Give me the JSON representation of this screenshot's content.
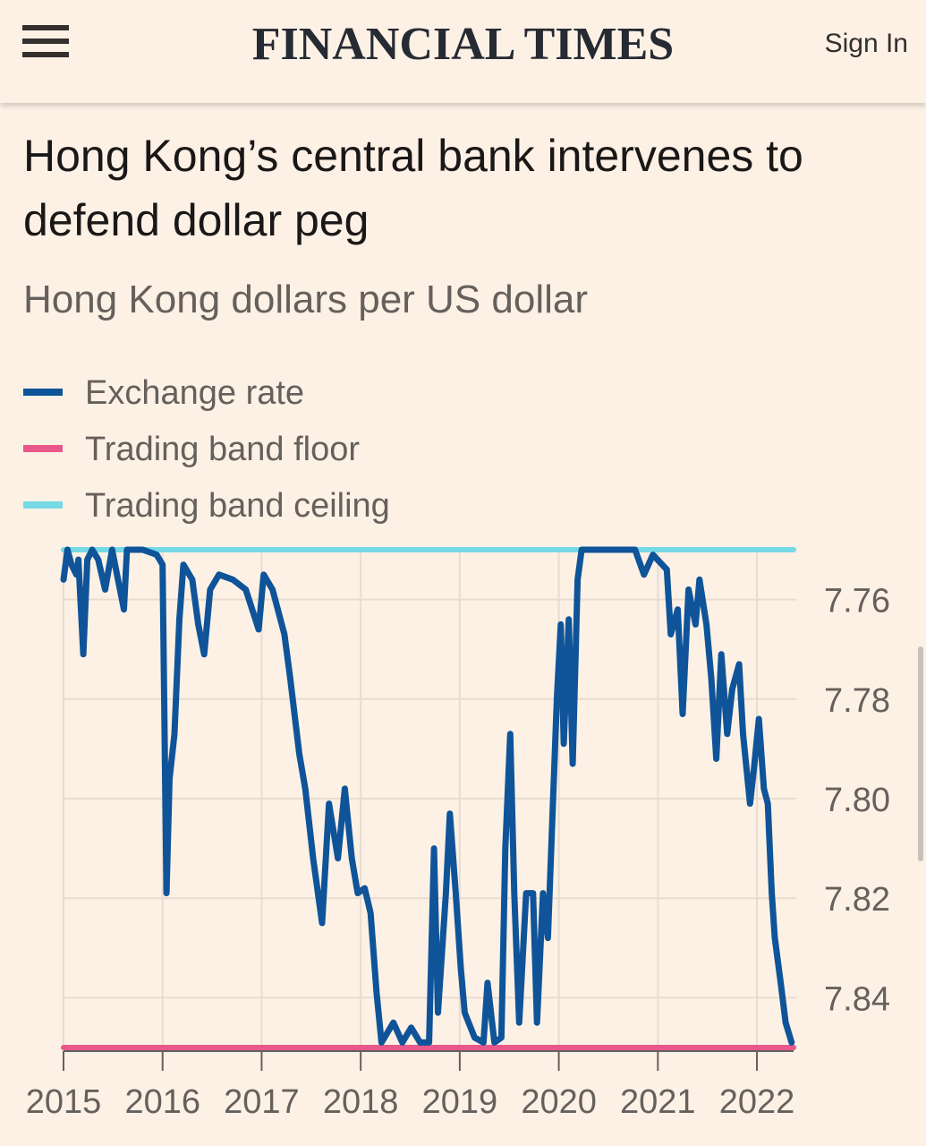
{
  "header": {
    "logo": "FINANCIAL TIMES",
    "sign_in": "Sign In"
  },
  "chart_data": {
    "type": "line",
    "title": "Hong Kong’s central bank intervenes to defend dollar peg",
    "subtitle": "Hong Kong dollars per US dollar",
    "xlim": [
      2015,
      2022.37
    ],
    "xticks": [
      2015,
      2016,
      2017,
      2018,
      2019,
      2020,
      2021,
      2022
    ],
    "ylim": [
      7.75,
      7.85
    ],
    "y_inverted": true,
    "yticks": [
      7.76,
      7.78,
      {
        "value": 7.8,
        "label": "7.80"
      },
      7.82,
      7.84
    ],
    "grid": true,
    "series": [
      {
        "name": "Exchange rate",
        "color": "#0f5499",
        "x": [
          2015.0,
          2015.04,
          2015.08,
          2015.13,
          2015.15,
          2015.2,
          2015.24,
          2015.29,
          2015.35,
          2015.42,
          2015.49,
          2015.61,
          2015.64,
          2015.8,
          2015.94,
          2016.0,
          2016.04,
          2016.07,
          2016.12,
          2016.17,
          2016.21,
          2016.3,
          2016.36,
          2016.42,
          2016.48,
          2016.57,
          2016.71,
          2016.84,
          2016.97,
          2017.02,
          2017.11,
          2017.23,
          2017.29,
          2017.38,
          2017.44,
          2017.52,
          2017.61,
          2017.68,
          2017.77,
          2017.84,
          2017.91,
          2017.97,
          2018.04,
          2018.1,
          2018.16,
          2018.21,
          2018.33,
          2018.42,
          2018.51,
          2018.6,
          2018.69,
          2018.74,
          2018.78,
          2018.86,
          2018.9,
          2018.96,
          2019.01,
          2019.05,
          2019.15,
          2019.24,
          2019.28,
          2019.35,
          2019.42,
          2019.46,
          2019.51,
          2019.55,
          2019.6,
          2019.67,
          2019.74,
          2019.78,
          2019.84,
          2019.89,
          2019.94,
          2019.98,
          2020.02,
          2020.05,
          2020.1,
          2020.14,
          2020.19,
          2020.23,
          2020.41,
          2020.59,
          2020.77,
          2020.86,
          2020.95,
          2021.09,
          2021.13,
          2021.2,
          2021.25,
          2021.31,
          2021.38,
          2021.42,
          2021.49,
          2021.54,
          2021.59,
          2021.64,
          2021.7,
          2021.75,
          2021.82,
          2021.86,
          2021.93,
          2021.97,
          2022.02,
          2022.07,
          2022.11,
          2022.15,
          2022.18,
          2022.24,
          2022.29,
          2022.35
        ],
        "values": [
          7.756,
          7.75,
          7.753,
          7.755,
          7.752,
          7.771,
          7.752,
          7.75,
          7.752,
          7.758,
          7.75,
          7.762,
          7.75,
          7.75,
          7.751,
          7.753,
          7.819,
          7.796,
          7.787,
          7.764,
          7.753,
          7.756,
          7.765,
          7.771,
          7.758,
          7.755,
          7.756,
          7.758,
          7.766,
          7.755,
          7.758,
          7.767,
          7.776,
          7.791,
          7.798,
          7.812,
          7.825,
          7.801,
          7.812,
          7.798,
          7.812,
          7.819,
          7.818,
          7.823,
          7.839,
          7.849,
          7.845,
          7.849,
          7.846,
          7.849,
          7.849,
          7.81,
          7.843,
          7.819,
          7.803,
          7.819,
          7.834,
          7.843,
          7.848,
          7.849,
          7.837,
          7.849,
          7.848,
          7.81,
          7.787,
          7.819,
          7.845,
          7.819,
          7.819,
          7.845,
          7.819,
          7.828,
          7.801,
          7.78,
          7.765,
          7.789,
          7.764,
          7.793,
          7.756,
          7.75,
          7.75,
          7.75,
          7.75,
          7.755,
          7.751,
          7.754,
          7.767,
          7.762,
          7.783,
          7.758,
          7.765,
          7.756,
          7.765,
          7.776,
          7.792,
          7.771,
          7.787,
          7.778,
          7.773,
          7.787,
          7.801,
          7.794,
          7.784,
          7.798,
          7.801,
          7.819,
          7.828,
          7.837,
          7.845,
          7.849
        ]
      },
      {
        "name": "Trading band floor",
        "color": "#e8588a",
        "x": [
          2015,
          2022.37
        ],
        "values": [
          7.85,
          7.85
        ]
      },
      {
        "name": "Trading band ceiling",
        "color": "#76d9e6",
        "x": [
          2015,
          2022.37
        ],
        "values": [
          7.75,
          7.75
        ]
      }
    ]
  }
}
